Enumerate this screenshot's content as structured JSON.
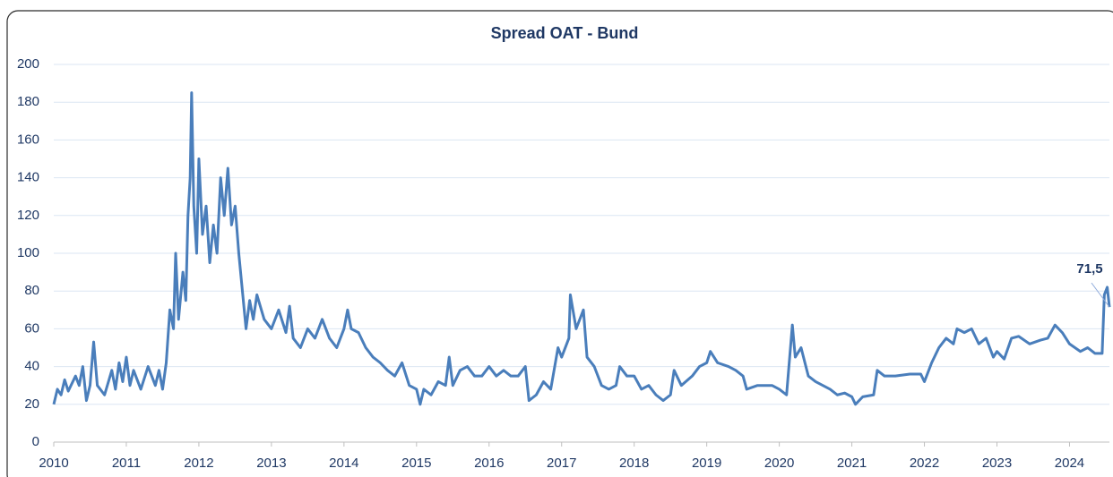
{
  "chart_data": {
    "type": "line",
    "title": "Spread OAT - Bund",
    "annotation": "71,5",
    "color": "#4a7ebb",
    "grid": true,
    "xlim": [
      2010,
      2024.55
    ],
    "xticks": [
      2010,
      2011,
      2012,
      2013,
      2014,
      2015,
      2016,
      2017,
      2018,
      2019,
      2020,
      2021,
      2022,
      2023,
      2024
    ],
    "ylim": [
      0,
      200
    ],
    "yticks": [
      0,
      20,
      40,
      60,
      80,
      100,
      120,
      140,
      160,
      180,
      200
    ],
    "x": [
      2010.0,
      2010.05,
      2010.1,
      2010.15,
      2010.2,
      2010.3,
      2010.35,
      2010.4,
      2010.45,
      2010.5,
      2010.55,
      2010.6,
      2010.7,
      2010.8,
      2010.85,
      2010.9,
      2010.95,
      2011.0,
      2011.05,
      2011.1,
      2011.2,
      2011.3,
      2011.4,
      2011.45,
      2011.5,
      2011.55,
      2011.6,
      2011.65,
      2011.68,
      2011.72,
      2011.78,
      2011.82,
      2011.85,
      2011.88,
      2011.9,
      2011.93,
      2011.97,
      2012.0,
      2012.05,
      2012.1,
      2012.15,
      2012.2,
      2012.25,
      2012.3,
      2012.35,
      2012.4,
      2012.45,
      2012.5,
      2012.55,
      2012.6,
      2012.65,
      2012.7,
      2012.75,
      2012.8,
      2012.9,
      2013.0,
      2013.1,
      2013.2,
      2013.25,
      2013.3,
      2013.4,
      2013.5,
      2013.6,
      2013.7,
      2013.8,
      2013.9,
      2014.0,
      2014.05,
      2014.1,
      2014.2,
      2014.3,
      2014.4,
      2014.5,
      2014.6,
      2014.7,
      2014.8,
      2014.9,
      2015.0,
      2015.05,
      2015.1,
      2015.2,
      2015.3,
      2015.4,
      2015.45,
      2015.5,
      2015.6,
      2015.7,
      2015.8,
      2015.9,
      2016.0,
      2016.1,
      2016.2,
      2016.3,
      2016.4,
      2016.5,
      2016.55,
      2016.65,
      2016.75,
      2016.85,
      2016.95,
      2017.0,
      2017.1,
      2017.12,
      2017.2,
      2017.3,
      2017.35,
      2017.45,
      2017.55,
      2017.65,
      2017.75,
      2017.8,
      2017.9,
      2018.0,
      2018.1,
      2018.2,
      2018.3,
      2018.4,
      2018.5,
      2018.55,
      2018.65,
      2018.8,
      2018.9,
      2019.0,
      2019.05,
      2019.15,
      2019.3,
      2019.4,
      2019.5,
      2019.55,
      2019.7,
      2019.8,
      2019.9,
      2020.0,
      2020.1,
      2020.18,
      2020.22,
      2020.3,
      2020.4,
      2020.5,
      2020.6,
      2020.7,
      2020.8,
      2020.9,
      2021.0,
      2021.05,
      2021.15,
      2021.3,
      2021.35,
      2021.45,
      2021.6,
      2021.8,
      2021.95,
      2022.0,
      2022.1,
      2022.2,
      2022.3,
      2022.4,
      2022.45,
      2022.55,
      2022.65,
      2022.75,
      2022.85,
      2022.95,
      2023.0,
      2023.1,
      2023.2,
      2023.3,
      2023.45,
      2023.6,
      2023.7,
      2023.8,
      2023.9,
      2024.0,
      2024.15,
      2024.25,
      2024.35,
      2024.45,
      2024.48,
      2024.52,
      2024.55
    ],
    "values": [
      20,
      28,
      25,
      33,
      27,
      35,
      30,
      40,
      22,
      30,
      53,
      30,
      25,
      38,
      28,
      42,
      32,
      45,
      30,
      38,
      28,
      40,
      30,
      38,
      28,
      42,
      70,
      60,
      100,
      65,
      90,
      75,
      120,
      140,
      185,
      125,
      100,
      150,
      110,
      125,
      95,
      115,
      100,
      140,
      120,
      145,
      115,
      125,
      100,
      80,
      60,
      75,
      65,
      78,
      65,
      60,
      70,
      58,
      72,
      55,
      50,
      60,
      55,
      65,
      55,
      50,
      60,
      70,
      60,
      58,
      50,
      45,
      42,
      38,
      35,
      42,
      30,
      28,
      20,
      28,
      25,
      32,
      30,
      45,
      30,
      38,
      40,
      35,
      35,
      40,
      35,
      38,
      35,
      35,
      40,
      22,
      25,
      32,
      28,
      50,
      45,
      55,
      78,
      60,
      70,
      45,
      40,
      30,
      28,
      30,
      40,
      35,
      35,
      28,
      30,
      25,
      22,
      25,
      38,
      30,
      35,
      40,
      42,
      48,
      42,
      40,
      38,
      35,
      28,
      30,
      30,
      30,
      28,
      25,
      62,
      45,
      50,
      35,
      32,
      30,
      28,
      25,
      26,
      24,
      20,
      24,
      25,
      38,
      35,
      35,
      36,
      36,
      32,
      42,
      50,
      55,
      52,
      60,
      58,
      60,
      52,
      55,
      45,
      48,
      44,
      55,
      56,
      52,
      54,
      55,
      62,
      58,
      52,
      48,
      50,
      47,
      47,
      78,
      82,
      71.5
    ]
  }
}
